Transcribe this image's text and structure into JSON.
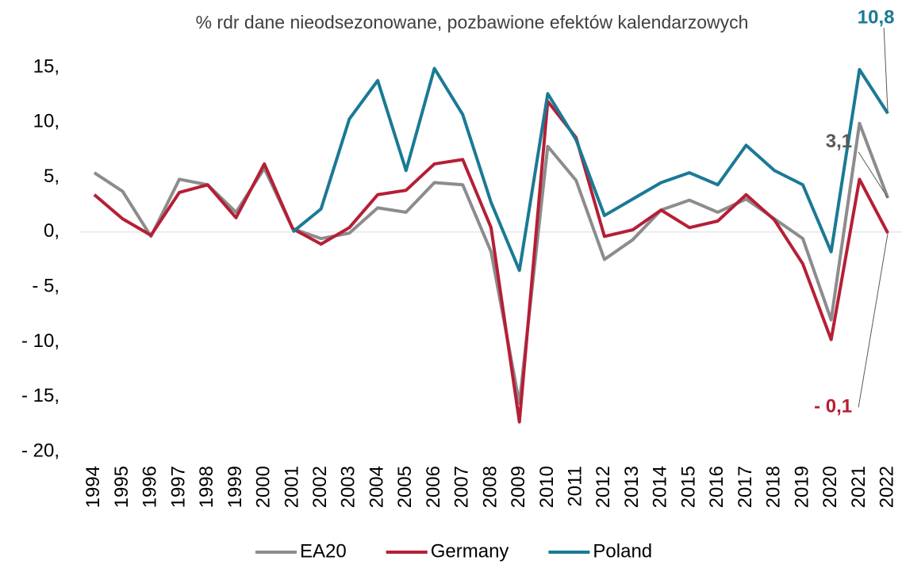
{
  "chart_data": {
    "type": "line",
    "subtitle": "% rdr dane nieodsezonowane, pozbawione efektów kalendarzowych",
    "categories": [
      "1994",
      "1995",
      "1996",
      "1997",
      "1998",
      "1999",
      "2000",
      "2001",
      "2002",
      "2003",
      "2004",
      "2005",
      "2006",
      "2007",
      "2008",
      "2009",
      "2010",
      "2011",
      "2012",
      "2013",
      "2014",
      "2015",
      "2016",
      "2017",
      "2018",
      "2019",
      "2020",
      "2021",
      "2022"
    ],
    "series": [
      {
        "name": "EA20",
        "color": "#8c8c8c",
        "values": [
          5.4,
          3.7,
          -0.4,
          4.8,
          4.3,
          1.8,
          5.8,
          0.3,
          -0.6,
          -0.1,
          2.2,
          1.8,
          4.5,
          4.3,
          -1.8,
          -15.6,
          7.8,
          4.7,
          -2.5,
          -0.7,
          2.0,
          2.9,
          1.8,
          3.0,
          1.2,
          -0.6,
          -8.0,
          9.9,
          3.1
        ],
        "value_labels": [
          null,
          null,
          null,
          null,
          null,
          null,
          null,
          null,
          null,
          null,
          null,
          null,
          null,
          null,
          null,
          null,
          null,
          null,
          null,
          null,
          null,
          null,
          null,
          null,
          null,
          null,
          null,
          null,
          "3,1"
        ]
      },
      {
        "name": "Germany",
        "color": "#b51f36",
        "values": [
          3.4,
          1.2,
          -0.3,
          3.6,
          4.3,
          1.3,
          6.2,
          0.3,
          -1.1,
          0.4,
          3.4,
          3.8,
          6.2,
          6.6,
          0.4,
          -17.3,
          11.9,
          8.6,
          -0.4,
          0.2,
          2.0,
          0.4,
          1.0,
          3.4,
          1.1,
          -2.9,
          -9.8,
          4.8,
          -0.1
        ],
        "value_labels": [
          null,
          null,
          null,
          null,
          null,
          null,
          null,
          null,
          null,
          null,
          null,
          null,
          null,
          null,
          null,
          null,
          null,
          null,
          null,
          null,
          null,
          null,
          null,
          null,
          null,
          null,
          null,
          null,
          "- 0,1"
        ]
      },
      {
        "name": "Poland",
        "color": "#1a7a94",
        "values": [
          null,
          null,
          null,
          null,
          null,
          null,
          null,
          0.0,
          2.1,
          10.3,
          13.8,
          5.6,
          14.9,
          10.7,
          2.7,
          -3.5,
          12.6,
          8.4,
          1.5,
          3.0,
          4.5,
          5.4,
          4.3,
          7.9,
          5.6,
          4.3,
          -1.8,
          14.8,
          10.8
        ],
        "value_labels": [
          null,
          null,
          null,
          null,
          null,
          null,
          null,
          null,
          null,
          null,
          null,
          null,
          null,
          null,
          null,
          null,
          null,
          null,
          null,
          null,
          null,
          null,
          null,
          null,
          null,
          null,
          null,
          null,
          "10,8"
        ]
      }
    ],
    "ylim": [
      -20,
      15
    ],
    "yticks": [
      {
        "value": -20,
        "label": "- 20,"
      },
      {
        "value": -15,
        "label": "- 15,"
      },
      {
        "value": -10,
        "label": "- 10,"
      },
      {
        "value": -5,
        "label": "- 5,"
      },
      {
        "value": 0,
        "label": "0,"
      },
      {
        "value": 5,
        "label": "5,"
      },
      {
        "value": 10,
        "label": "10,"
      },
      {
        "value": 15,
        "label": "15,"
      }
    ],
    "grid": false,
    "legend": "bottom"
  }
}
